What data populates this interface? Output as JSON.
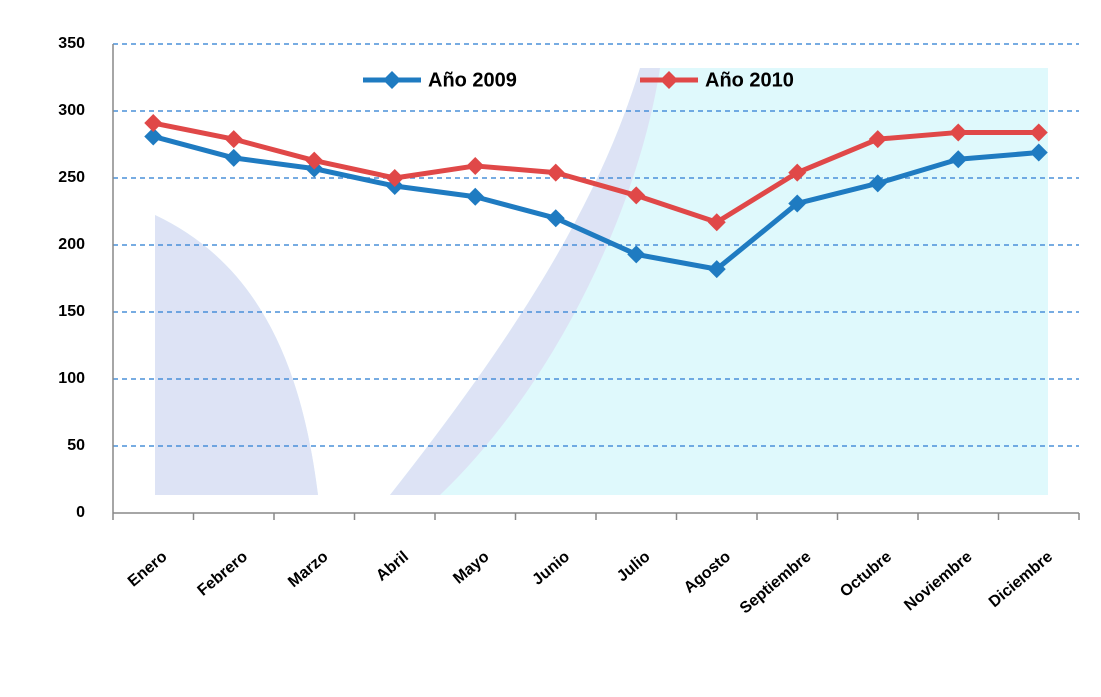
{
  "chart_data": {
    "type": "line",
    "categories": [
      "Enero",
      "Febrero",
      "Marzo",
      "Abril",
      "Mayo",
      "Junio",
      "Julio",
      "Agosto",
      "Septiembre",
      "Octubre",
      "Noviembre",
      "Diciembre"
    ],
    "series": [
      {
        "name": "Año 2009",
        "color": "#1f7bc1",
        "values": [
          281,
          265,
          257,
          244,
          236,
          220,
          193,
          182,
          231,
          246,
          264,
          269
        ]
      },
      {
        "name": "Año 2010",
        "color": "#e04848",
        "values": [
          291,
          279,
          263,
          250,
          259,
          254,
          237,
          217,
          254,
          279,
          284,
          284
        ]
      }
    ],
    "ylim": [
      0,
      350
    ],
    "yticks": [
      0,
      50,
      100,
      150,
      200,
      250,
      300,
      350
    ],
    "grid": true
  }
}
